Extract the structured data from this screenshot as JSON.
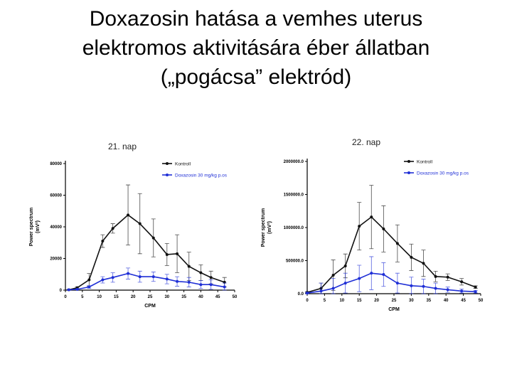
{
  "title": {
    "line1": "Doxazosin hatása a vemhes uterus",
    "line2": "elektromos aktivitására éber állatban",
    "line3": "(„pogácsa” elektród)"
  },
  "colors": {
    "kontroll": "#111111",
    "doxazosin": "#1f2fd6",
    "axis": "#000000"
  },
  "chart_data": [
    {
      "type": "line",
      "title": "21. nap",
      "xlabel": "CPM",
      "ylabel": "Power spectrum",
      "ylabel_unit": "(mV²)",
      "xlim": [
        0,
        50
      ],
      "ylim": [
        0,
        80000
      ],
      "x_ticks": [
        0,
        5,
        10,
        15,
        20,
        25,
        30,
        35,
        40,
        45,
        50
      ],
      "y_ticks": [
        0,
        20000,
        40000,
        60000,
        80000
      ],
      "y_tick_labels": [
        "0",
        "20000",
        "40000",
        "60000",
        "80000"
      ],
      "legend_position": "top-right",
      "series": [
        {
          "name": "Kontroll",
          "color": "#111111",
          "x": [
            1,
            3.5,
            7,
            11,
            14,
            18.5,
            22,
            26,
            30,
            33,
            36.5,
            40,
            43,
            47
          ],
          "y": [
            200,
            1500,
            6500,
            31000,
            39000,
            47500,
            42000,
            33000,
            22500,
            23000,
            15000,
            11000,
            8000,
            5000
          ],
          "err": [
            300,
            600,
            4000,
            4000,
            3000,
            19000,
            19000,
            12000,
            7000,
            12000,
            9000,
            5000,
            4000,
            3000
          ]
        },
        {
          "name": "Doxazosin 30 mg/kg p.os",
          "color": "#1f2fd6",
          "x": [
            1,
            3.5,
            7,
            11,
            14,
            18.5,
            22,
            26,
            30,
            33,
            36.5,
            40,
            43,
            47
          ],
          "y": [
            200,
            500,
            2000,
            6500,
            8000,
            10500,
            8500,
            8500,
            7000,
            5500,
            5000,
            3500,
            3500,
            2000
          ],
          "err": [
            200,
            300,
            800,
            2000,
            3000,
            3500,
            3500,
            3000,
            3000,
            3000,
            3000,
            2500,
            3000,
            2500
          ]
        }
      ]
    },
    {
      "type": "line",
      "title": "22. nap",
      "xlabel": "CPM",
      "ylabel": "Power spectrum",
      "ylabel_unit": "(mV²)",
      "xlim": [
        0,
        50
      ],
      "ylim": [
        0,
        2000000
      ],
      "x_ticks": [
        0,
        5,
        10,
        15,
        20,
        25,
        30,
        35,
        40,
        45,
        50
      ],
      "y_ticks": [
        0,
        500000,
        1000000,
        1500000,
        2000000
      ],
      "y_tick_labels": [
        "0.0",
        "500000.0",
        "1000000.0",
        "1500000.0",
        "2000000.0"
      ],
      "legend_position": "top-right",
      "series": [
        {
          "name": "Kontroll",
          "color": "#111111",
          "x": [
            0,
            4,
            7.5,
            11,
            15,
            18.5,
            22,
            26,
            30,
            33.5,
            37,
            40.5,
            44.5,
            48.5
          ],
          "y": [
            20000,
            80000,
            280000,
            420000,
            1020000,
            1160000,
            980000,
            760000,
            550000,
            460000,
            260000,
            250000,
            180000,
            100000
          ],
          "err": [
            10000,
            80000,
            230000,
            180000,
            360000,
            480000,
            350000,
            280000,
            200000,
            200000,
            80000,
            50000,
            50000,
            20000
          ]
        },
        {
          "name": "Doxazosin 30 mg/kg p.os",
          "color": "#1f2fd6",
          "x": [
            0,
            4,
            7.5,
            11,
            15,
            18.5,
            22,
            26,
            30,
            33.5,
            37,
            40.5,
            44.5,
            48.5
          ],
          "y": [
            10000,
            40000,
            80000,
            160000,
            230000,
            310000,
            290000,
            160000,
            120000,
            110000,
            80000,
            60000,
            40000,
            30000
          ],
          "err": [
            10000,
            120000,
            150000,
            150000,
            200000,
            250000,
            180000,
            150000,
            130000,
            110000,
            80000,
            40000,
            30000,
            20000
          ]
        }
      ]
    }
  ]
}
